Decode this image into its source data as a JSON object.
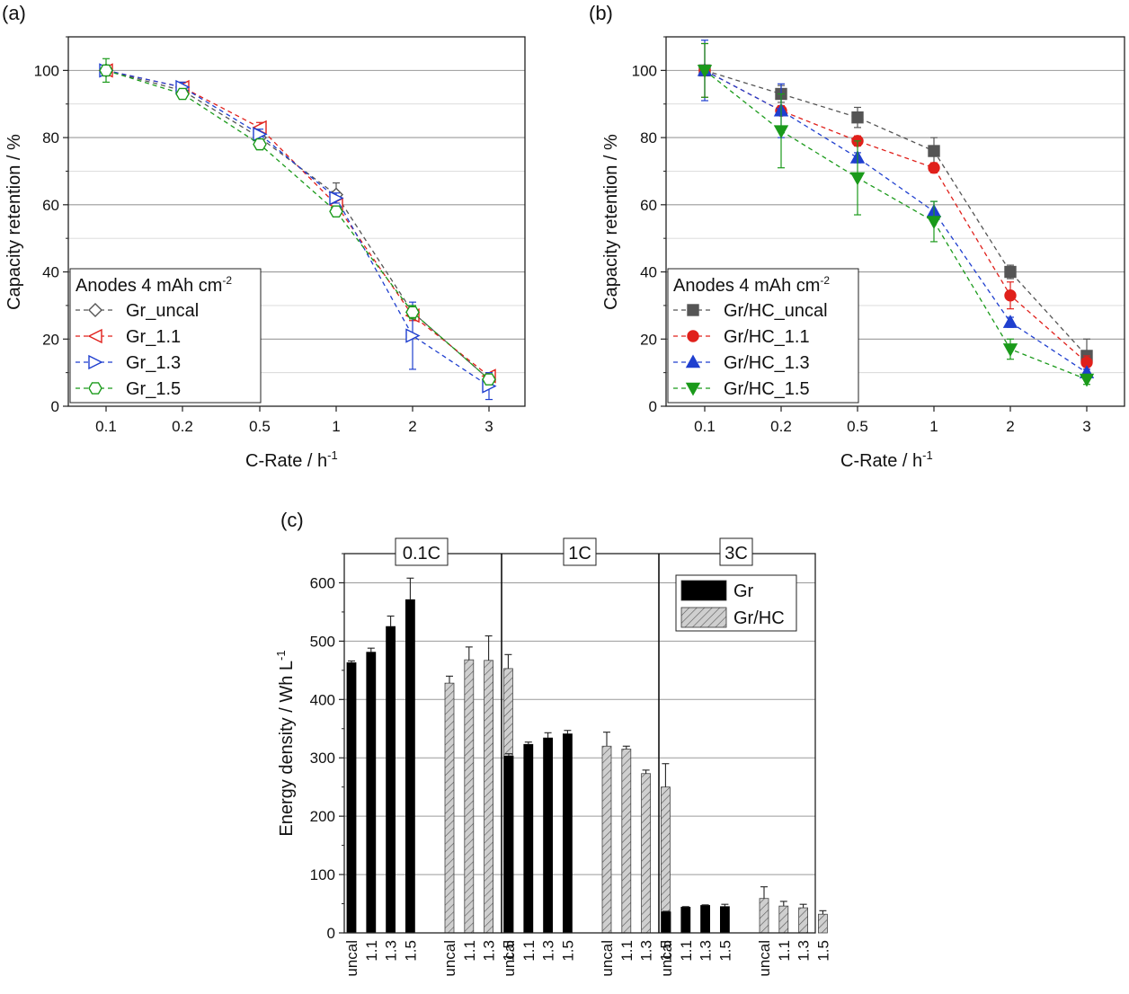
{
  "colors": {
    "gr_uncal": "#555555",
    "gr_1_1": "#e0201b",
    "gr_1_3": "#1f3fcf",
    "gr_1_5": "#1a9a1a",
    "bar_gr": "#000000",
    "bar_grhc": "#cfcfcf",
    "grid": "#9a9a9a",
    "grid_minor": "#d8d8d8"
  },
  "chart_data": [
    {
      "type": "line",
      "panel_label": "(a)",
      "xlabel": "C-Rate / h",
      "xlabel_sup": "-1",
      "ylabel": "Capacity retention / %",
      "categories": [
        "0.1",
        "0.2",
        "0.5",
        "1",
        "2",
        "3"
      ],
      "ylim": [
        0,
        110
      ],
      "yticks": [
        "0",
        "20",
        "40",
        "60",
        "80",
        "100"
      ],
      "legend_title": "Anodes 4 mAh cm",
      "legend_title_sup": "-2",
      "legend_position": "bottom-left",
      "grid": true,
      "series": [
        {
          "name": "Gr_uncal",
          "marker": "diamond-open",
          "color_key": "gr_uncal",
          "values": [
            100,
            94,
            80,
            63,
            28,
            8
          ],
          "errors": [
            1.5,
            1.5,
            1.5,
            3.5,
            1.5,
            1.0
          ]
        },
        {
          "name": "Gr_1.1",
          "marker": "triangle-left-open",
          "color_key": "gr_1_1",
          "values": [
            100,
            95,
            83,
            60,
            27,
            9
          ],
          "errors": [
            1.5,
            1.5,
            1.5,
            1.5,
            1.5,
            1.0
          ]
        },
        {
          "name": "Gr_1.3",
          "marker": "triangle-right-open",
          "color_key": "gr_1_3",
          "values": [
            100,
            95,
            81,
            62,
            21,
            6
          ],
          "errors": [
            1.5,
            1.5,
            1.5,
            1.5,
            10,
            4.0
          ]
        },
        {
          "name": "Gr_1.5",
          "marker": "hexagon-open",
          "color_key": "gr_1_5",
          "values": [
            100,
            93,
            78,
            58,
            28,
            8
          ],
          "errors": [
            3.5,
            1.5,
            1.5,
            1.5,
            2.0,
            1.0
          ]
        }
      ]
    },
    {
      "type": "line",
      "panel_label": "(b)",
      "xlabel": "C-Rate / h",
      "xlabel_sup": "-1",
      "ylabel": "Capacity retention / %",
      "categories": [
        "0.1",
        "0.2",
        "0.5",
        "1",
        "2",
        "3"
      ],
      "ylim": [
        0,
        110
      ],
      "yticks": [
        "0",
        "20",
        "40",
        "60",
        "80",
        "100"
      ],
      "legend_title": "Anodes 4 mAh cm",
      "legend_title_sup": "-2",
      "legend_position": "bottom-left",
      "grid": true,
      "series": [
        {
          "name": "Gr/HC_uncal",
          "marker": "square-filled",
          "color_key": "gr_uncal",
          "values": [
            100,
            93,
            86,
            76,
            40,
            15
          ],
          "errors": [
            1.5,
            2.5,
            3.0,
            4.0,
            2.0,
            5.0
          ]
        },
        {
          "name": "Gr/HC_1.1",
          "marker": "circle-filled",
          "color_key": "gr_1_1",
          "values": [
            100,
            88,
            79,
            71,
            33,
            13
          ],
          "errors": [
            8,
            1.5,
            1.5,
            1.5,
            4.0,
            2.0
          ]
        },
        {
          "name": "Gr/HC_1.3",
          "marker": "triangle-up-filled",
          "color_key": "gr_1_3",
          "values": [
            100,
            88,
            74,
            58,
            25,
            10
          ],
          "errors": [
            9,
            8,
            1.5,
            3.0,
            1.5,
            1.0
          ]
        },
        {
          "name": "Gr/HC_1.5",
          "marker": "triangle-down-filled",
          "color_key": "gr_1_5",
          "values": [
            100,
            82,
            68,
            55,
            17,
            8
          ],
          "errors": [
            8,
            11,
            11,
            6,
            3.0,
            1.5
          ]
        }
      ]
    },
    {
      "type": "bar",
      "panel_label": "(c)",
      "ylabel": "Energy density / Wh L",
      "ylabel_sup": "-1",
      "ylim": [
        0,
        650
      ],
      "yticks": [
        "0",
        "100",
        "200",
        "300",
        "400",
        "500",
        "600"
      ],
      "grid": true,
      "legend_position": "top-right",
      "legend": [
        {
          "name": "Gr",
          "color_key": "bar_gr",
          "pattern": "solid"
        },
        {
          "name": "Gr/HC",
          "color_key": "bar_grhc",
          "pattern": "hatch"
        }
      ],
      "groups": [
        {
          "label": "0.1C",
          "bars": [
            {
              "category": "uncal",
              "series": "Gr",
              "value": 463,
              "error": 3
            },
            {
              "category": "1.1",
              "series": "Gr",
              "value": 481,
              "error": 7
            },
            {
              "category": "1.3",
              "series": "Gr",
              "value": 525,
              "error": 18
            },
            {
              "category": "1.5",
              "series": "Gr",
              "value": 571,
              "error": 37
            },
            {
              "category": "uncal",
              "series": "Gr/HC",
              "value": 428,
              "error": 12
            },
            {
              "category": "1.1",
              "series": "Gr/HC",
              "value": 468,
              "error": 22
            },
            {
              "category": "1.3",
              "series": "Gr/HC",
              "value": 467,
              "error": 42
            },
            {
              "category": "1.5",
              "series": "Gr/HC",
              "value": 453,
              "error": 24
            }
          ]
        },
        {
          "label": "1C",
          "bars": [
            {
              "category": "uncal",
              "series": "Gr",
              "value": 303,
              "error": 4
            },
            {
              "category": "1.1",
              "series": "Gr",
              "value": 323,
              "error": 4
            },
            {
              "category": "1.3",
              "series": "Gr",
              "value": 334,
              "error": 9
            },
            {
              "category": "1.5",
              "series": "Gr",
              "value": 341,
              "error": 6
            },
            {
              "category": "uncal",
              "series": "Gr/HC",
              "value": 320,
              "error": 24
            },
            {
              "category": "1.1",
              "series": "Gr/HC",
              "value": 315,
              "error": 5
            },
            {
              "category": "1.3",
              "series": "Gr/HC",
              "value": 273,
              "error": 6
            },
            {
              "category": "1.5",
              "series": "Gr/HC",
              "value": 250,
              "error": 40
            }
          ]
        },
        {
          "label": "3C",
          "bars": [
            {
              "category": "uncal",
              "series": "Gr",
              "value": 36,
              "error": 1
            },
            {
              "category": "1.1",
              "series": "Gr",
              "value": 44,
              "error": 1
            },
            {
              "category": "1.3",
              "series": "Gr",
              "value": 47,
              "error": 1
            },
            {
              "category": "1.5",
              "series": "Gr",
              "value": 45,
              "error": 4
            },
            {
              "category": "uncal",
              "series": "Gr/HC",
              "value": 59,
              "error": 20
            },
            {
              "category": "1.1",
              "series": "Gr/HC",
              "value": 46,
              "error": 8
            },
            {
              "category": "1.3",
              "series": "Gr/HC",
              "value": 43,
              "error": 6
            },
            {
              "category": "1.5",
              "series": "Gr/HC",
              "value": 32,
              "error": 6
            }
          ]
        }
      ]
    }
  ]
}
